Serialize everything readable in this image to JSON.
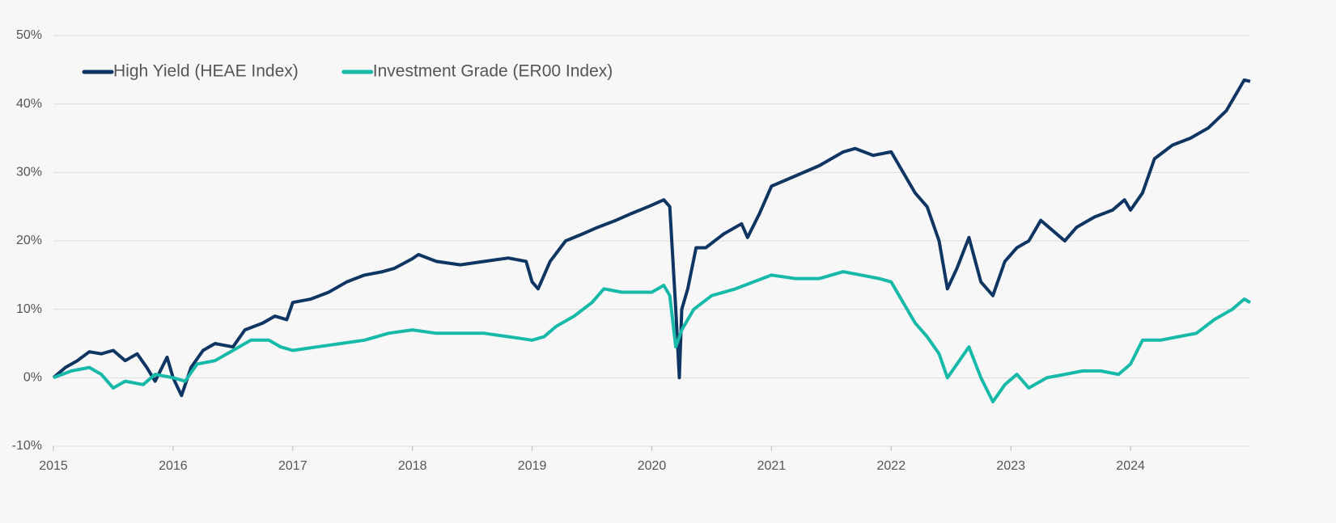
{
  "chart_data": {
    "type": "line",
    "xlim": [
      2015,
      2025
    ],
    "xticks": [
      2015,
      2016,
      2017,
      2018,
      2019,
      2020,
      2021,
      2022,
      2023,
      2024
    ],
    "ylim": [
      -10,
      50
    ],
    "yticks": [
      {
        "value": -10,
        "label": "-10%"
      },
      {
        "value": 0,
        "label": "0%"
      },
      {
        "value": 10,
        "label": "10%"
      },
      {
        "value": 20,
        "label": "20%"
      },
      {
        "value": 30,
        "label": "30%"
      },
      {
        "value": 40,
        "label": "40%"
      },
      {
        "value": 50,
        "label": "50%"
      }
    ],
    "grid": true,
    "legend": "top-left",
    "series": [
      {
        "name": "High Yield (HEAE Index)",
        "color": "#0f3563",
        "x": [
          2015.0,
          2015.1,
          2015.2,
          2015.3,
          2015.4,
          2015.5,
          2015.6,
          2015.7,
          2015.78,
          2015.85,
          2015.95,
          2016.0,
          2016.07,
          2016.15,
          2016.25,
          2016.35,
          2016.5,
          2016.6,
          2016.75,
          2016.85,
          2016.95,
          2017.0,
          2017.15,
          2017.3,
          2017.45,
          2017.6,
          2017.75,
          2017.85,
          2018.0,
          2018.05,
          2018.2,
          2018.4,
          2018.6,
          2018.8,
          2018.95,
          2019.0,
          2019.05,
          2019.15,
          2019.28,
          2019.42,
          2019.55,
          2019.7,
          2019.83,
          2019.97,
          2020.1,
          2020.15,
          2020.2,
          2020.23,
          2020.25,
          2020.3,
          2020.37,
          2020.45,
          2020.6,
          2020.75,
          2020.8,
          2020.9,
          2021.0,
          2021.2,
          2021.4,
          2021.6,
          2021.7,
          2021.85,
          2022.0,
          2022.1,
          2022.2,
          2022.3,
          2022.4,
          2022.47,
          2022.55,
          2022.65,
          2022.75,
          2022.85,
          2022.95,
          2023.05,
          2023.15,
          2023.25,
          2023.35,
          2023.45,
          2023.55,
          2023.7,
          2023.85,
          2023.95,
          2024.0,
          2024.1,
          2024.2,
          2024.35,
          2024.5,
          2024.65,
          2024.8,
          2024.95,
          2025.0
        ],
        "values": [
          0,
          1.5,
          2.5,
          3.8,
          3.5,
          4,
          2.5,
          3.5,
          1.5,
          -0.5,
          3,
          0,
          -2.6,
          1.5,
          4,
          5,
          4.5,
          7,
          8,
          9,
          8.5,
          11,
          11.5,
          12.5,
          14,
          15,
          15.5,
          16,
          17.4,
          18,
          17,
          16.5,
          17,
          17.5,
          17,
          14,
          13,
          17,
          20,
          21,
          22,
          23,
          24,
          25,
          26,
          25,
          10,
          0,
          10,
          13,
          19,
          19,
          21,
          22.5,
          20.5,
          24,
          28,
          29.5,
          31,
          33,
          33.5,
          32.5,
          33,
          30,
          27,
          25,
          20,
          13,
          16,
          20.5,
          14,
          12,
          17,
          19,
          20,
          23,
          21.5,
          20,
          22,
          23.5,
          24.5,
          26,
          24.5,
          27,
          32,
          34,
          35,
          36.5,
          39,
          43.5,
          43.3
        ]
      },
      {
        "name": "Investment Grade (ER00 Index)",
        "color": "#17b9a9",
        "x": [
          2015.0,
          2015.15,
          2015.3,
          2015.4,
          2015.5,
          2015.6,
          2015.75,
          2015.85,
          2016.0,
          2016.1,
          2016.2,
          2016.35,
          2016.5,
          2016.65,
          2016.8,
          2016.9,
          2017.0,
          2017.2,
          2017.4,
          2017.6,
          2017.8,
          2018.0,
          2018.2,
          2018.4,
          2018.6,
          2018.8,
          2019.0,
          2019.1,
          2019.2,
          2019.35,
          2019.5,
          2019.6,
          2019.75,
          2019.9,
          2020.0,
          2020.1,
          2020.15,
          2020.2,
          2020.25,
          2020.35,
          2020.5,
          2020.7,
          2020.85,
          2021.0,
          2021.2,
          2021.4,
          2021.6,
          2021.75,
          2021.9,
          2022.0,
          2022.1,
          2022.2,
          2022.3,
          2022.4,
          2022.47,
          2022.55,
          2022.65,
          2022.75,
          2022.85,
          2022.95,
          2023.05,
          2023.15,
          2023.3,
          2023.45,
          2023.6,
          2023.75,
          2023.9,
          2024.0,
          2024.1,
          2024.25,
          2024.4,
          2024.55,
          2024.7,
          2024.85,
          2024.95,
          2025.0
        ],
        "values": [
          0,
          1,
          1.5,
          0.5,
          -1.5,
          -0.5,
          -1,
          0.5,
          0,
          -0.5,
          2,
          2.5,
          4,
          5.5,
          5.5,
          4.5,
          4,
          4.5,
          5,
          5.5,
          6.5,
          7,
          6.5,
          6.5,
          6.5,
          6,
          5.5,
          6,
          7.5,
          9,
          11,
          13,
          12.5,
          12.5,
          12.5,
          13.5,
          12,
          4.5,
          7,
          10,
          12,
          13,
          14,
          15,
          14.5,
          14.5,
          15.5,
          15,
          14.5,
          14,
          11,
          8,
          6,
          3.5,
          0,
          2,
          4.5,
          0,
          -3.5,
          -1,
          0.5,
          -1.5,
          0,
          0.5,
          1,
          1,
          0.5,
          2,
          5.5,
          5.5,
          6,
          6.5,
          8.5,
          10,
          11.5,
          11
        ]
      }
    ]
  }
}
